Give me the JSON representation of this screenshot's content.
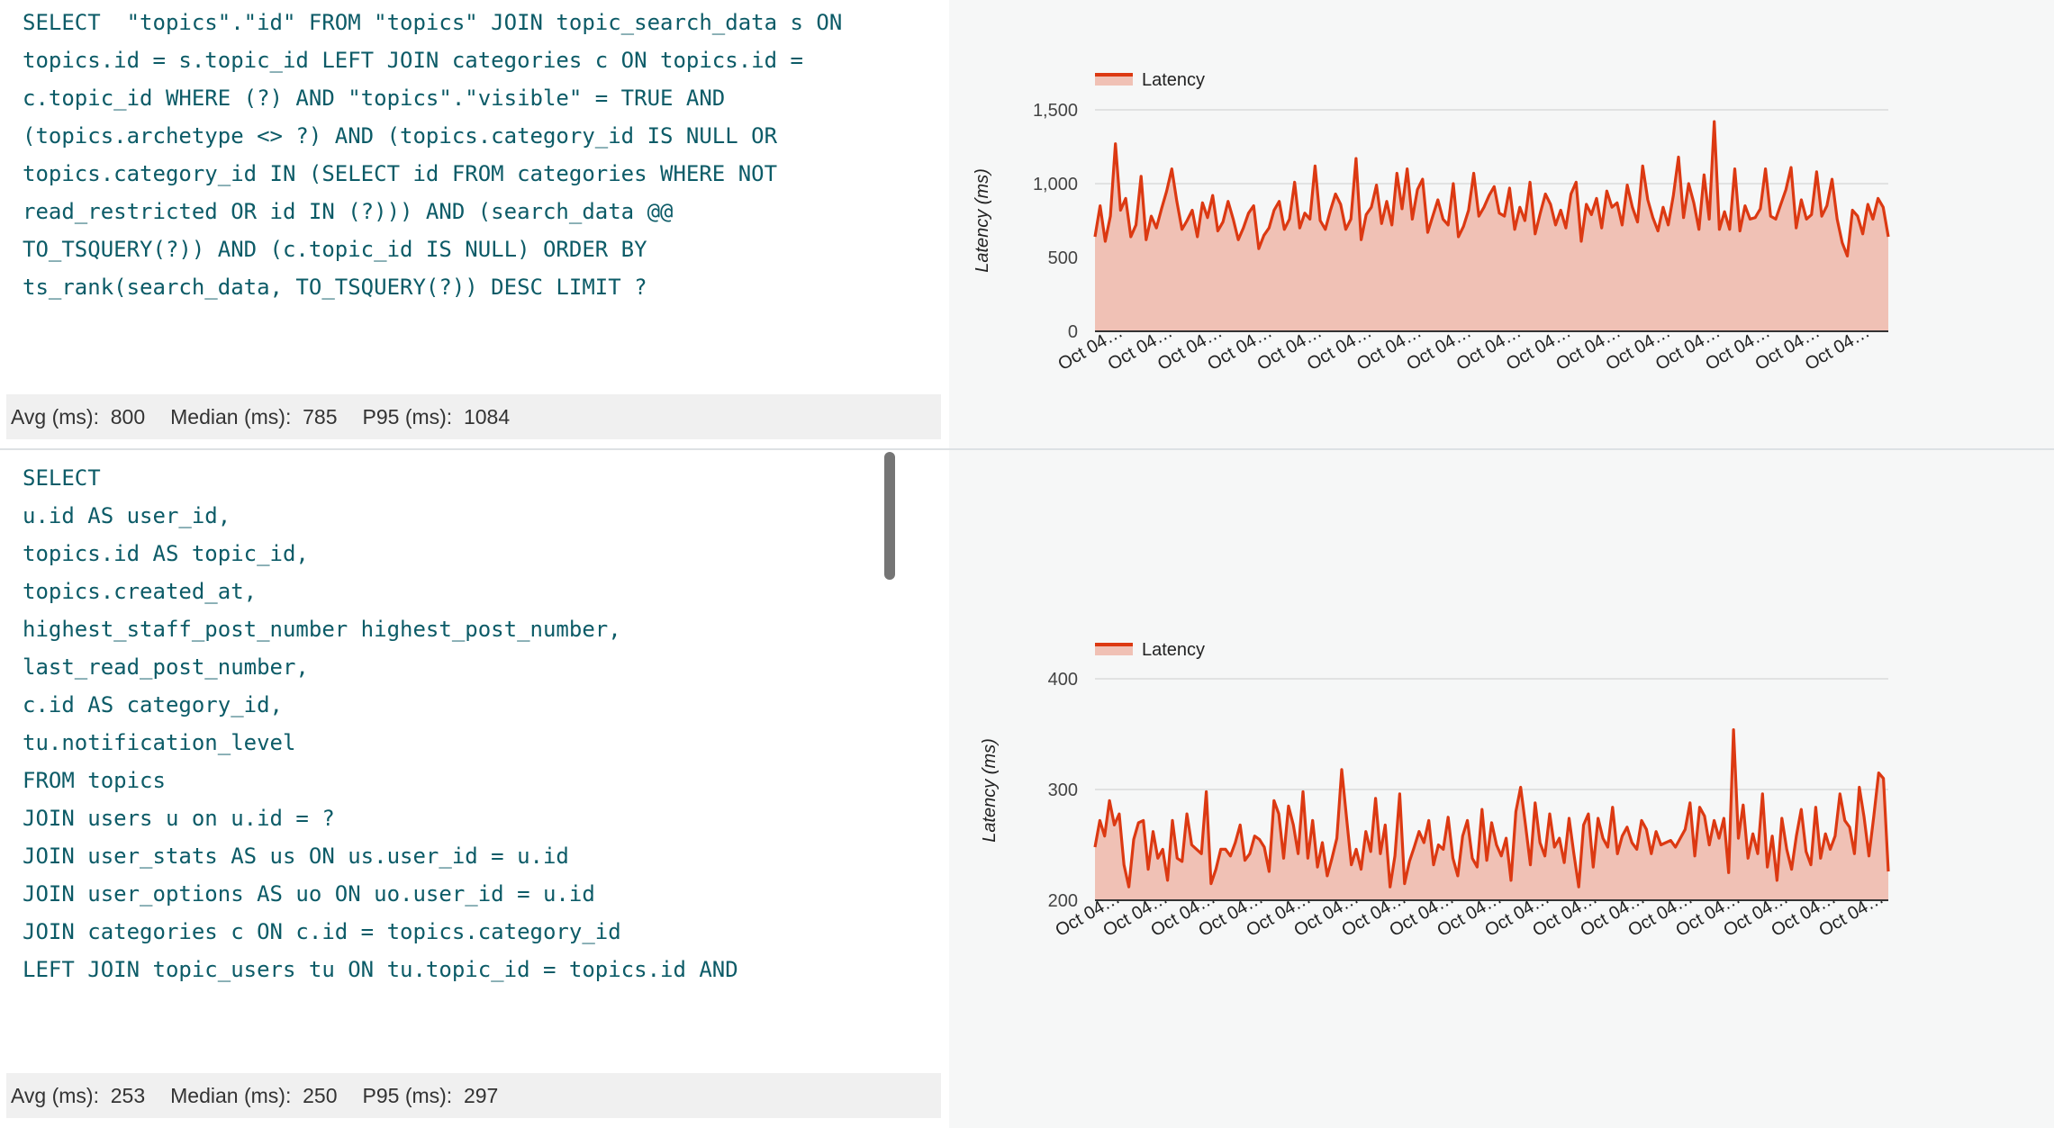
{
  "panels": [
    {
      "sql": "SELECT  \"topics\".\"id\" FROM \"topics\" JOIN topic_search_data s ON\ntopics.id = s.topic_id LEFT JOIN categories c ON topics.id =\nc.topic_id WHERE (?) AND \"topics\".\"visible\" = TRUE AND\n(topics.archetype <> ?) AND (topics.category_id IS NULL OR\ntopics.category_id IN (SELECT id FROM categories WHERE NOT\nread_restricted OR id IN (?))) AND (search_data @@\nTO_TSQUERY(?)) AND (c.topic_id IS NULL) ORDER BY\nts_rank(search_data, TO_TSQUERY(?)) DESC LIMIT ?",
      "stats": {
        "avg_label": "Avg (ms):",
        "avg": "800",
        "median_label": "Median (ms):",
        "median": "785",
        "p95_label": "P95 (ms):",
        "p95": "1084"
      }
    },
    {
      "sql": "SELECT\nu.id AS user_id,\ntopics.id AS topic_id,\ntopics.created_at,\nhighest_staff_post_number highest_post_number,\nlast_read_post_number,\nc.id AS category_id,\ntu.notification_level\nFROM topics\nJOIN users u on u.id = ?\nJOIN user_stats AS us ON us.user_id = u.id\nJOIN user_options AS uo ON uo.user_id = u.id\nJOIN categories c ON c.id = topics.category_id\nLEFT JOIN topic_users tu ON tu.topic_id = topics.id AND",
      "stats": {
        "avg_label": "Avg (ms):",
        "avg": "253",
        "median_label": "Median (ms):",
        "median": "250",
        "p95_label": "P95 (ms):",
        "p95": "297"
      }
    }
  ],
  "chart_data": [
    {
      "type": "area",
      "title": "",
      "ylabel": "Latency (ms)",
      "xlabel": "",
      "legend": "top-left",
      "grid": true,
      "ylim": [
        0,
        1500
      ],
      "yticks": [
        "0",
        "500",
        "1,000",
        "1,500"
      ],
      "ytick_values": [
        0,
        500,
        1000,
        1500
      ],
      "xtick_labels": [
        "Oct 04…",
        "Oct 04…",
        "Oct 04…",
        "Oct 04…",
        "Oct 04…",
        "Oct 04…",
        "Oct 04…",
        "Oct 04…",
        "Oct 04…",
        "Oct 04…",
        "Oct 04…",
        "Oct 04…",
        "Oct 04…",
        "Oct 04…",
        "Oct 04…",
        "Oct 04…"
      ],
      "line_color": "#dc3912",
      "fill_color": "#f0c1b5",
      "series": [
        {
          "name": "Latency",
          "values": [
            640,
            850,
            610,
            780,
            1270,
            820,
            900,
            640,
            720,
            1050,
            620,
            780,
            700,
            830,
            950,
            1100,
            880,
            690,
            750,
            820,
            640,
            870,
            770,
            920,
            680,
            740,
            880,
            760,
            620,
            700,
            800,
            850,
            560,
            650,
            700,
            820,
            880,
            690,
            760,
            1010,
            700,
            800,
            760,
            1120,
            750,
            690,
            820,
            930,
            860,
            690,
            760,
            1170,
            620,
            790,
            840,
            990,
            730,
            880,
            720,
            1070,
            830,
            1100,
            760,
            960,
            1030,
            670,
            780,
            890,
            760,
            720,
            1000,
            640,
            710,
            820,
            1070,
            780,
            840,
            920,
            980,
            800,
            780,
            970,
            690,
            840,
            750,
            1010,
            660,
            800,
            930,
            860,
            720,
            820,
            700,
            930,
            1010,
            610,
            860,
            790,
            900,
            700,
            950,
            840,
            870,
            720,
            990,
            840,
            740,
            1120,
            890,
            770,
            680,
            840,
            720,
            920,
            1180,
            770,
            1000,
            870,
            690,
            1060,
            760,
            1420,
            690,
            810,
            690,
            1100,
            680,
            850,
            760,
            770,
            830,
            1100,
            780,
            760,
            860,
            960,
            1110,
            700,
            890,
            760,
            790,
            1080,
            780,
            850,
            1030,
            760,
            600,
            510,
            820,
            780,
            660,
            860,
            760,
            900,
            840,
            640
          ]
        }
      ]
    },
    {
      "type": "area",
      "title": "",
      "ylabel": "Latency (ms)",
      "xlabel": "",
      "legend": "top-left",
      "grid": true,
      "ylim": [
        200,
        400
      ],
      "yticks": [
        "200",
        "300",
        "400"
      ],
      "ytick_values": [
        200,
        300,
        400
      ],
      "xtick_labels": [
        "Oct 04…",
        "Oct 04…",
        "Oct 04…",
        "Oct 04…",
        "Oct 04…",
        "Oct 04…",
        "Oct 04…",
        "Oct 04…",
        "Oct 04…",
        "Oct 04…",
        "Oct 04…",
        "Oct 04…",
        "Oct 04…",
        "Oct 04…",
        "Oct 04…",
        "Oct 04…",
        "Oct 04…"
      ],
      "line_color": "#dc3912",
      "fill_color": "#f0c1b5",
      "series": [
        {
          "name": "Latency",
          "values": [
            248,
            272,
            258,
            290,
            268,
            278,
            232,
            212,
            255,
            270,
            272,
            228,
            262,
            238,
            246,
            218,
            272,
            238,
            235,
            278,
            250,
            246,
            242,
            298,
            215,
            228,
            246,
            246,
            240,
            252,
            268,
            236,
            242,
            258,
            255,
            248,
            226,
            290,
            278,
            238,
            285,
            268,
            242,
            298,
            238,
            272,
            230,
            252,
            222,
            238,
            256,
            318,
            275,
            232,
            246,
            228,
            262,
            244,
            292,
            242,
            268,
            212,
            240,
            296,
            215,
            235,
            248,
            262,
            252,
            272,
            232,
            250,
            246,
            275,
            238,
            222,
            258,
            272,
            238,
            230,
            282,
            236,
            270,
            250,
            240,
            256,
            218,
            280,
            302,
            268,
            232,
            288,
            252,
            240,
            278,
            248,
            256,
            234,
            274,
            242,
            212,
            268,
            278,
            230,
            274,
            256,
            248,
            284,
            242,
            258,
            266,
            252,
            246,
            272,
            264,
            242,
            262,
            250,
            252,
            254,
            248,
            256,
            264,
            288,
            240,
            284,
            276,
            250,
            272,
            256,
            274,
            225,
            354,
            256,
            286,
            238,
            260,
            242,
            296,
            230,
            258,
            218,
            274,
            246,
            228,
            258,
            282,
            244,
            232,
            284,
            238,
            260,
            246,
            258,
            296,
            272,
            266,
            242,
            302,
            275,
            240,
            276,
            315,
            310,
            226
          ]
        }
      ]
    }
  ]
}
